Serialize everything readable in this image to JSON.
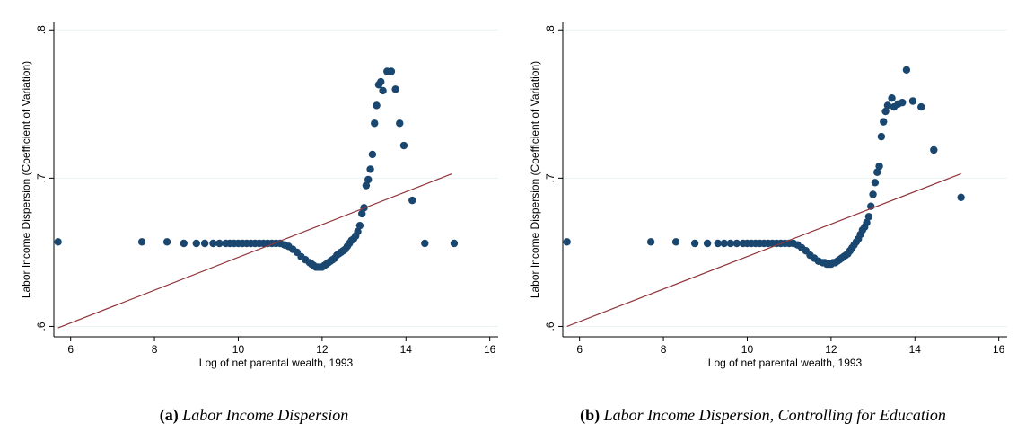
{
  "chart_data": [
    {
      "type": "scatter",
      "xlabel": "Log of net parental wealth, 1993",
      "ylabel": "Labor Income Dispersion (Coefficient of Variation)",
      "xlim": [
        5.6,
        16.2
      ],
      "ylim": [
        0.593,
        0.805
      ],
      "xticks": [
        6,
        8,
        10,
        12,
        14,
        16
      ],
      "xtick_labels": [
        "6",
        "8",
        "10",
        "12",
        "14",
        "16"
      ],
      "yticks": [
        0.6,
        0.7,
        0.8
      ],
      "ytick_labels": [
        ".6",
        ".7",
        ".8"
      ],
      "grid": "horizontal",
      "marker_color": "#1a476f",
      "line_color": "#90353b",
      "fit_line": {
        "x": [
          5.7,
          15.1
        ],
        "y": [
          0.599,
          0.703
        ]
      },
      "series": [
        {
          "x": [
            5.7,
            7.7,
            8.3,
            8.7,
            9.0,
            9.2,
            9.4,
            9.55,
            9.7,
            9.8,
            9.9,
            10.0,
            10.1,
            10.2,
            10.3,
            10.4,
            10.5,
            10.6,
            10.7,
            10.8,
            10.9,
            11.0,
            11.1,
            11.2,
            11.3,
            11.4,
            11.5,
            11.6,
            11.7,
            11.75,
            11.8,
            11.85,
            11.9,
            11.95,
            12.0,
            12.05,
            12.1,
            12.15,
            12.2,
            12.25,
            12.3,
            12.35,
            12.4,
            12.45,
            12.5,
            12.55,
            12.6,
            12.65,
            12.7,
            12.75,
            12.8,
            12.85,
            12.9,
            12.95,
            13.0,
            13.05,
            13.1,
            13.15,
            13.2,
            13.25,
            13.3,
            13.35,
            13.4,
            13.45,
            13.55,
            13.65,
            13.75,
            13.85,
            13.95,
            14.15,
            14.45,
            15.15
          ],
          "y": [
            0.657,
            0.657,
            0.657,
            0.656,
            0.656,
            0.656,
            0.656,
            0.656,
            0.656,
            0.656,
            0.656,
            0.656,
            0.656,
            0.656,
            0.656,
            0.656,
            0.656,
            0.656,
            0.656,
            0.656,
            0.656,
            0.656,
            0.655,
            0.654,
            0.652,
            0.65,
            0.647,
            0.645,
            0.643,
            0.642,
            0.641,
            0.64,
            0.64,
            0.64,
            0.64,
            0.641,
            0.642,
            0.643,
            0.644,
            0.645,
            0.646,
            0.648,
            0.649,
            0.65,
            0.651,
            0.652,
            0.654,
            0.656,
            0.658,
            0.659,
            0.661,
            0.664,
            0.668,
            0.676,
            0.68,
            0.695,
            0.699,
            0.706,
            0.716,
            0.737,
            0.749,
            0.763,
            0.765,
            0.759,
            0.772,
            0.772,
            0.76,
            0.737,
            0.722,
            0.685,
            0.656,
            0.656
          ]
        }
      ]
    },
    {
      "type": "scatter",
      "xlabel": "Log of net parental wealth, 1993",
      "ylabel": "Labor Income Dispersion (Coefficient of Variation)",
      "xlim": [
        5.6,
        16.2
      ],
      "ylim": [
        0.593,
        0.805
      ],
      "xticks": [
        6,
        8,
        10,
        12,
        14,
        16
      ],
      "xtick_labels": [
        "6",
        "8",
        "10",
        "12",
        "14",
        "16"
      ],
      "yticks": [
        0.6,
        0.7,
        0.8
      ],
      "ytick_labels": [
        ".6",
        ".7",
        ".8"
      ],
      "grid": "horizontal",
      "marker_color": "#1a476f",
      "line_color": "#90353b",
      "fit_line": {
        "x": [
          5.7,
          15.1
        ],
        "y": [
          0.6,
          0.703
        ]
      },
      "series": [
        {
          "x": [
            5.7,
            7.7,
            8.3,
            8.75,
            9.05,
            9.3,
            9.45,
            9.6,
            9.75,
            9.9,
            10.0,
            10.1,
            10.2,
            10.3,
            10.4,
            10.5,
            10.6,
            10.7,
            10.8,
            10.9,
            11.0,
            11.1,
            11.2,
            11.3,
            11.4,
            11.5,
            11.6,
            11.7,
            11.8,
            11.85,
            11.9,
            11.95,
            12.0,
            12.05,
            12.1,
            12.15,
            12.2,
            12.25,
            12.3,
            12.35,
            12.4,
            12.45,
            12.5,
            12.55,
            12.6,
            12.65,
            12.7,
            12.75,
            12.8,
            12.85,
            12.9,
            12.95,
            13.0,
            13.05,
            13.1,
            13.15,
            13.2,
            13.25,
            13.3,
            13.35,
            13.45,
            13.5,
            13.6,
            13.7,
            13.8,
            13.95,
            14.15,
            14.45,
            15.1
          ],
          "y": [
            0.657,
            0.657,
            0.657,
            0.656,
            0.656,
            0.656,
            0.656,
            0.656,
            0.656,
            0.656,
            0.656,
            0.656,
            0.656,
            0.656,
            0.656,
            0.656,
            0.656,
            0.656,
            0.656,
            0.656,
            0.656,
            0.656,
            0.655,
            0.653,
            0.651,
            0.648,
            0.646,
            0.644,
            0.643,
            0.643,
            0.642,
            0.642,
            0.642,
            0.643,
            0.643,
            0.644,
            0.645,
            0.646,
            0.647,
            0.648,
            0.649,
            0.651,
            0.653,
            0.655,
            0.657,
            0.659,
            0.662,
            0.665,
            0.667,
            0.67,
            0.674,
            0.681,
            0.689,
            0.697,
            0.704,
            0.708,
            0.728,
            0.738,
            0.745,
            0.749,
            0.754,
            0.748,
            0.75,
            0.751,
            0.773,
            0.752,
            0.748,
            0.719,
            0.687
          ]
        }
      ]
    }
  ],
  "captions": [
    {
      "tag": "(a)",
      "text": "Labor Income Dispersion"
    },
    {
      "tag": "(b)",
      "text": "Labor Income Dispersion, Controlling for Education"
    }
  ]
}
